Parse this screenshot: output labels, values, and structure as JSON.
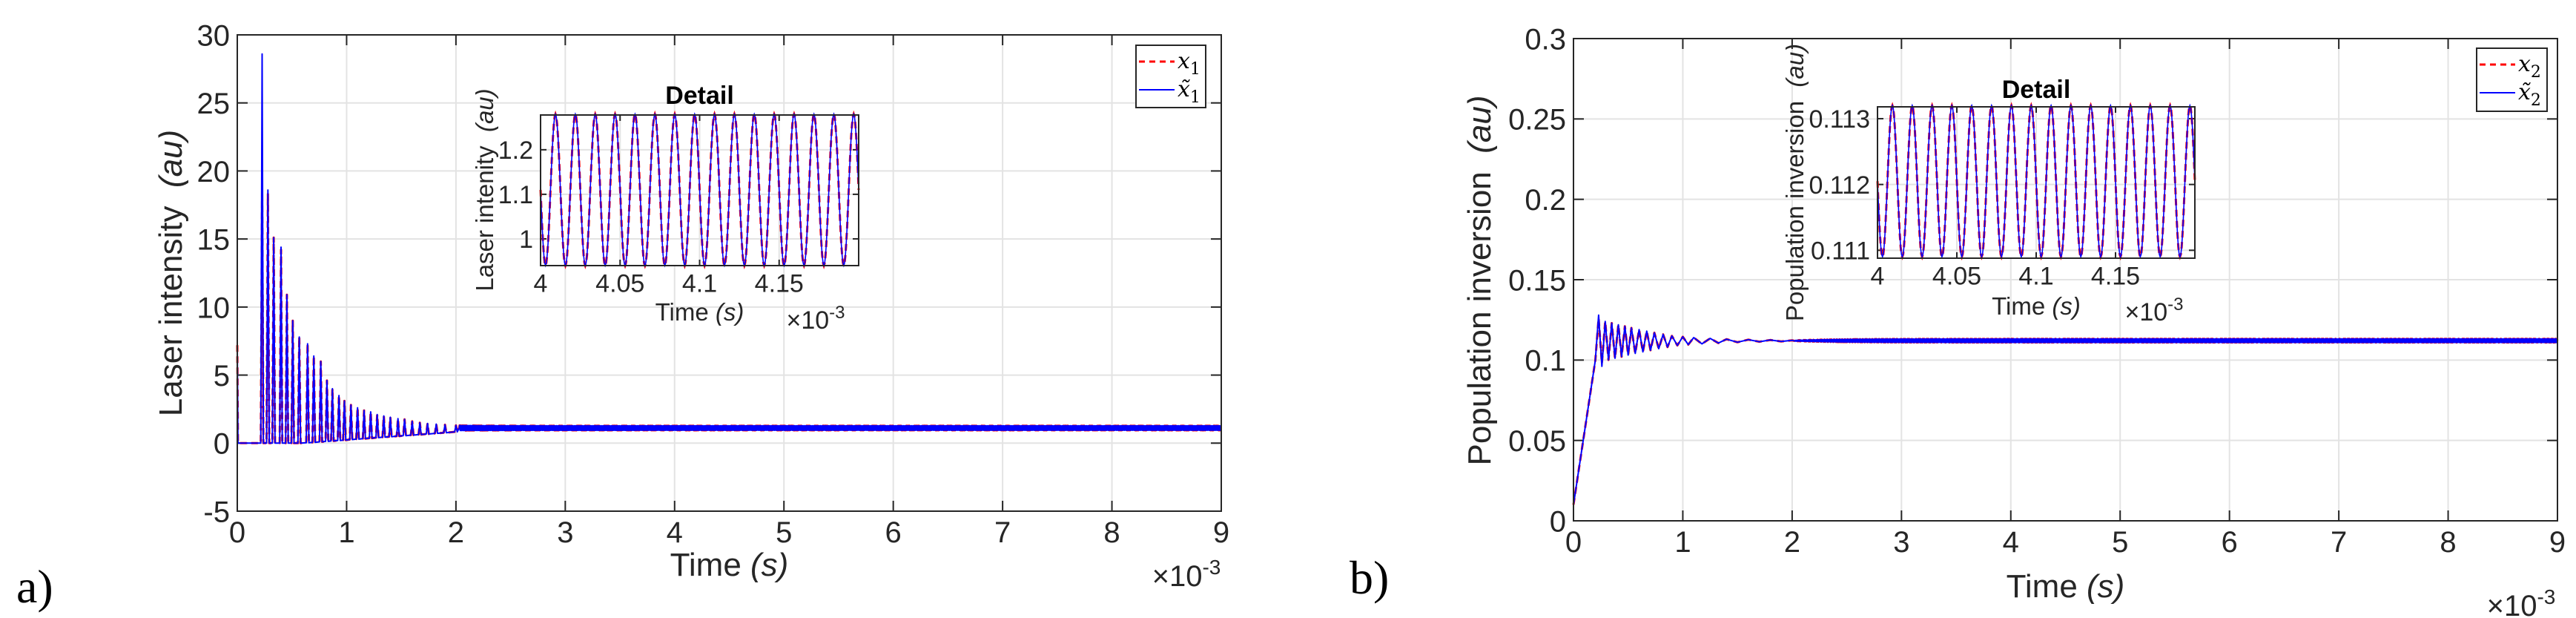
{
  "chart_data": [
    {
      "type": "line",
      "panel_label": "a)",
      "xlabel": "Time",
      "xlabel_unit": "(s)",
      "x_exponent": "×10",
      "x_exponent_power": "-3",
      "ylabel": "Laser intensity",
      "ylabel_unit": "(au)",
      "xlim": [
        0,
        9
      ],
      "ylim": [
        -5,
        30
      ],
      "xticks": [
        "0",
        "1",
        "2",
        "3",
        "4",
        "5",
        "6",
        "7",
        "8",
        "9"
      ],
      "yticks": [
        "-5",
        "0",
        "5",
        "10",
        "15",
        "20",
        "25",
        "30"
      ],
      "grid": true,
      "legend": {
        "position": "top-right",
        "entries": [
          {
            "name": "x",
            "sub": "1",
            "style": "dashed",
            "color": "#ff0000"
          },
          {
            "name": "x̃",
            "sub": "1",
            "style": "solid",
            "color": "#0000ff"
          }
        ]
      },
      "initial_value": 7.2,
      "steady_state": {
        "mean": 1.11,
        "amplitude": 0.17,
        "period": 0.0125
      },
      "series": [
        {
          "legend": 0,
          "peaks": [
            [
              0.227,
              18.6
            ],
            [
              0.28,
              18.3
            ],
            [
              0.333,
              15.1
            ],
            [
              0.4,
              14.2
            ],
            [
              0.454,
              10.9
            ],
            [
              0.507,
              9.0
            ],
            [
              0.567,
              7.8
            ],
            [
              0.643,
              7.3
            ],
            [
              0.7,
              6.4
            ],
            [
              0.764,
              6.0
            ],
            [
              0.82,
              4.6
            ],
            [
              0.87,
              4.0
            ],
            [
              0.93,
              3.5
            ],
            [
              0.98,
              3.1
            ],
            [
              1.04,
              2.8
            ],
            [
              1.1,
              2.6
            ],
            [
              1.16,
              2.4
            ],
            [
              1.22,
              2.3
            ],
            [
              1.28,
              2.1
            ],
            [
              1.34,
              2.0
            ],
            [
              1.4,
              1.9
            ],
            [
              1.47,
              1.8
            ],
            [
              1.53,
              1.75
            ],
            [
              1.6,
              1.6
            ],
            [
              1.67,
              1.5
            ],
            [
              1.74,
              1.45
            ],
            [
              1.82,
              1.4
            ],
            [
              1.9,
              1.35
            ],
            [
              2.0,
              1.3
            ]
          ]
        },
        {
          "legend": 1,
          "peaks": [
            [
              0.227,
              28.6
            ],
            [
              0.28,
              18.6
            ],
            [
              0.333,
              15.1
            ],
            [
              0.4,
              14.4
            ],
            [
              0.454,
              10.9
            ],
            [
              0.507,
              9.0
            ],
            [
              0.567,
              7.8
            ],
            [
              0.643,
              7.3
            ],
            [
              0.7,
              6.4
            ],
            [
              0.764,
              6.0
            ],
            [
              0.82,
              4.6
            ],
            [
              0.87,
              4.0
            ],
            [
              0.93,
              3.5
            ],
            [
              0.98,
              3.1
            ],
            [
              1.04,
              2.8
            ],
            [
              1.1,
              2.6
            ],
            [
              1.16,
              2.4
            ],
            [
              1.22,
              2.3
            ],
            [
              1.28,
              2.1
            ],
            [
              1.34,
              2.0
            ],
            [
              1.4,
              1.9
            ],
            [
              1.47,
              1.8
            ],
            [
              1.53,
              1.75
            ],
            [
              1.6,
              1.6
            ],
            [
              1.67,
              1.5
            ],
            [
              1.74,
              1.45
            ],
            [
              1.82,
              1.4
            ],
            [
              1.9,
              1.35
            ],
            [
              2.0,
              1.3
            ]
          ]
        }
      ],
      "inset": {
        "title": "Detail",
        "xlabel": "Time",
        "xlabel_unit": "(s)",
        "x_exponent": "×10",
        "x_exponent_power": "-3",
        "ylabel": "Laser intenity",
        "ylabel_unit": "(au)",
        "xlim": [
          4,
          4.2
        ],
        "ylim": [
          0.94,
          1.278
        ],
        "xticks": [
          "4",
          "4.05",
          "4.1",
          "4.15"
        ],
        "yticks": [
          "1",
          "1.1",
          "1.2"
        ]
      }
    },
    {
      "type": "line",
      "panel_label": "b)",
      "xlabel": "Time",
      "xlabel_unit": "(s)",
      "x_exponent": "×10",
      "x_exponent_power": "-3",
      "ylabel": "Population inversion",
      "ylabel_unit": "(au)",
      "xlim": [
        0,
        9
      ],
      "ylim": [
        0,
        0.3
      ],
      "xticks": [
        "0",
        "1",
        "2",
        "3",
        "4",
        "5",
        "6",
        "7",
        "8",
        "9"
      ],
      "yticks": [
        "0",
        "0.05",
        "0.1",
        "0.15",
        "0.2",
        "0.25",
        "0.3"
      ],
      "grid": true,
      "legend": {
        "position": "top-right",
        "entries": [
          {
            "name": "x",
            "sub": "2",
            "style": "dashed",
            "color": "#ff0000"
          },
          {
            "name": "x̃",
            "sub": "2",
            "style": "solid",
            "color": "#0000ff"
          }
        ]
      },
      "initial_value": 0.01,
      "rise_to": [
        0.2,
        0.1
      ],
      "steady_state": {
        "mean": 0.11205,
        "amplitude": 0.00115,
        "period": 0.0125
      },
      "series": [
        {
          "legend": 0,
          "peaks": [
            [
              0.23,
              0.126
            ],
            [
              0.29,
              0.124
            ],
            [
              0.35,
              0.123
            ],
            [
              0.41,
              0.122
            ],
            [
              0.47,
              0.121
            ],
            [
              0.53,
              0.12
            ],
            [
              0.6,
              0.119
            ],
            [
              0.67,
              0.118
            ],
            [
              0.74,
              0.117
            ],
            [
              0.82,
              0.116
            ],
            [
              0.9,
              0.115
            ],
            [
              1.0,
              0.1145
            ],
            [
              1.1,
              0.114
            ],
            [
              1.25,
              0.1135
            ],
            [
              1.4,
              0.113
            ],
            [
              1.6,
              0.1127
            ],
            [
              1.8,
              0.1125
            ],
            [
              2.0,
              0.1123
            ]
          ]
        },
        {
          "legend": 1,
          "peaks": [
            [
              0.23,
              0.128
            ],
            [
              0.29,
              0.124
            ],
            [
              0.35,
              0.123
            ],
            [
              0.41,
              0.122
            ],
            [
              0.47,
              0.121
            ],
            [
              0.53,
              0.12
            ],
            [
              0.6,
              0.119
            ],
            [
              0.67,
              0.118
            ],
            [
              0.74,
              0.117
            ],
            [
              0.82,
              0.116
            ],
            [
              0.9,
              0.115
            ],
            [
              1.0,
              0.1145
            ],
            [
              1.1,
              0.114
            ],
            [
              1.25,
              0.1135
            ],
            [
              1.4,
              0.113
            ],
            [
              1.6,
              0.1127
            ],
            [
              1.8,
              0.1125
            ],
            [
              2.0,
              0.1123
            ]
          ]
        }
      ],
      "inset": {
        "title": "Detail",
        "xlabel": "Time",
        "xlabel_unit": "(s)",
        "x_exponent": "×10",
        "x_exponent_power": "-3",
        "ylabel": "Population inversion",
        "ylabel_unit": "(au)",
        "xlim": [
          4,
          4.2
        ],
        "ylim": [
          0.11088,
          0.11318
        ],
        "xticks": [
          "4",
          "4.05",
          "4.1",
          "4.15"
        ],
        "yticks": [
          "0.111",
          "0.112",
          "0.113"
        ]
      }
    }
  ]
}
